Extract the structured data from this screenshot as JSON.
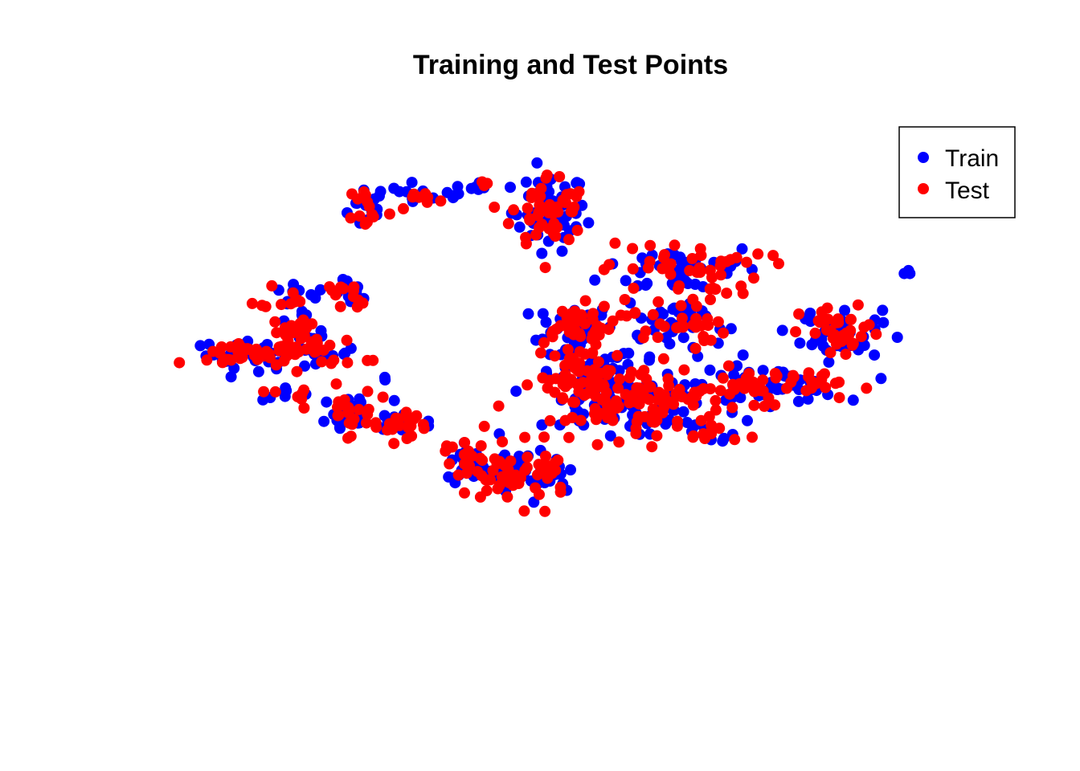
{
  "chart_data": {
    "type": "scatter",
    "title": "Training and Test Points",
    "xlabel": "",
    "ylabel": "",
    "axes_visible": false,
    "grid": false,
    "legend_position": "top-right",
    "xlim": [
      0,
      100
    ],
    "ylim": [
      0,
      100
    ],
    "series": [
      {
        "name": "Train",
        "color": "#0000ff",
        "clusters": [
          {
            "center": [
              23.5,
              84.8
            ],
            "spread": [
              1.3,
              2.3
            ],
            "count": 18
          },
          {
            "center": [
              29.8,
              87.9
            ],
            "spread": [
              1.8,
              0.8
            ],
            "count": 8
          },
          {
            "center": [
              36.6,
              87.9
            ],
            "spread": [
              1.8,
              1.0
            ],
            "count": 10
          },
          {
            "center": [
              46.7,
              83.8
            ],
            "spread": [
              2.4,
              3.8
            ],
            "count": 45
          },
          {
            "center": [
              14.1,
              67.5
            ],
            "spread": [
              2.2,
              1.3
            ],
            "count": 10
          },
          {
            "center": [
              21.7,
              67.8
            ],
            "spread": [
              1.2,
              1.3
            ],
            "count": 10
          },
          {
            "center": [
              49.8,
              61.8
            ],
            "spread": [
              2.5,
              2.0
            ],
            "count": 35
          },
          {
            "center": [
              63.9,
              72.7
            ],
            "spread": [
              5.2,
              2.6
            ],
            "count": 40
          },
          {
            "center": [
              62.9,
              62.3
            ],
            "spread": [
              3.2,
              3.2
            ],
            "count": 40
          },
          {
            "center": [
              84.2,
              60.1
            ],
            "spread": [
              2.6,
              2.6
            ],
            "count": 35
          },
          {
            "center": [
              80.5,
              63.2
            ],
            "spread": [
              0.6,
              0.5
            ],
            "count": 4
          },
          {
            "center": [
              92.9,
              71.9
            ],
            "spread": [
              0.3,
              0.3
            ],
            "count": 3
          },
          {
            "center": [
              11.6,
              56.1
            ],
            "spread": [
              5.5,
              1.3
            ],
            "count": 45
          },
          {
            "center": [
              14.6,
              60.2
            ],
            "spread": [
              1.6,
              1.8
            ],
            "count": 20
          },
          {
            "center": [
              5.1,
              54.4
            ],
            "spread": [
              0.5,
              0.4
            ],
            "count": 3
          },
          {
            "center": [
              25.7,
              51.1
            ],
            "spread": [
              0.3,
              0.3
            ],
            "count": 2
          },
          {
            "center": [
              13.6,
              48.5
            ],
            "spread": [
              1.8,
              0.7
            ],
            "count": 6
          },
          {
            "center": [
              20.7,
              44.6
            ],
            "spread": [
              1.8,
              2.6
            ],
            "count": 22
          },
          {
            "center": [
              28.1,
              42.8
            ],
            "spread": [
              2.8,
              1.3
            ],
            "count": 20
          },
          {
            "center": [
              51.5,
              51.6
            ],
            "spread": [
              3.4,
              3.0
            ],
            "count": 45
          },
          {
            "center": [
              53.8,
              45.5
            ],
            "spread": [
              3.6,
              3.2
            ],
            "count": 40
          },
          {
            "center": [
              59.7,
              47.2
            ],
            "spread": [
              2.0,
              2.6
            ],
            "count": 20
          },
          {
            "center": [
              65.0,
              46.3
            ],
            "spread": [
              4.0,
              2.8
            ],
            "count": 30
          },
          {
            "center": [
              74.8,
              50.0
            ],
            "spread": [
              4.6,
              1.7
            ],
            "count": 45
          },
          {
            "center": [
              67.9,
              40.3
            ],
            "spread": [
              1.8,
              0.5
            ],
            "count": 6
          },
          {
            "center": [
              35.9,
              35.3
            ],
            "spread": [
              2.2,
              2.6
            ],
            "count": 18
          },
          {
            "center": [
              42.2,
              32.0
            ],
            "spread": [
              3.6,
              2.6
            ],
            "count": 40
          },
          {
            "center": [
              47.1,
              33.6
            ],
            "spread": [
              1.4,
              1.5
            ],
            "count": 8
          }
        ]
      },
      {
        "name": "Test",
        "color": "#ff0000",
        "clusters": [
          {
            "center": [
              23.5,
              84.8
            ],
            "spread": [
              1.3,
              2.3
            ],
            "count": 14
          },
          {
            "center": [
              30.3,
              86.3
            ],
            "spread": [
              1.6,
              1.2
            ],
            "count": 8
          },
          {
            "center": [
              38.5,
              89.8
            ],
            "spread": [
              0.6,
              0.7
            ],
            "count": 3
          },
          {
            "center": [
              46.7,
              83.8
            ],
            "spread": [
              2.4,
              3.8
            ],
            "count": 50
          },
          {
            "center": [
              14.1,
              67.5
            ],
            "spread": [
              2.2,
              1.3
            ],
            "count": 12
          },
          {
            "center": [
              21.7,
              67.8
            ],
            "spread": [
              1.2,
              1.3
            ],
            "count": 10
          },
          {
            "center": [
              49.8,
              61.8
            ],
            "spread": [
              2.5,
              2.0
            ],
            "count": 40
          },
          {
            "center": [
              63.9,
              72.7
            ],
            "spread": [
              5.2,
              2.6
            ],
            "count": 45
          },
          {
            "center": [
              62.9,
              62.3
            ],
            "spread": [
              3.2,
              3.2
            ],
            "count": 35
          },
          {
            "center": [
              84.2,
              60.1
            ],
            "spread": [
              2.6,
              2.6
            ],
            "count": 35
          },
          {
            "center": [
              11.6,
              56.1
            ],
            "spread": [
              5.5,
              1.3
            ],
            "count": 50
          },
          {
            "center": [
              14.6,
              60.2
            ],
            "spread": [
              1.6,
              1.8
            ],
            "count": 22
          },
          {
            "center": [
              5.1,
              54.4
            ],
            "spread": [
              0.5,
              0.4
            ],
            "count": 3
          },
          {
            "center": [
              13.6,
              48.5
            ],
            "spread": [
              1.8,
              0.7
            ],
            "count": 6
          },
          {
            "center": [
              20.7,
              44.6
            ],
            "spread": [
              1.8,
              2.6
            ],
            "count": 22
          },
          {
            "center": [
              28.1,
              42.8
            ],
            "spread": [
              2.8,
              1.3
            ],
            "count": 22
          },
          {
            "center": [
              51.5,
              51.6
            ],
            "spread": [
              3.4,
              3.0
            ],
            "count": 50
          },
          {
            "center": [
              53.8,
              45.5
            ],
            "spread": [
              3.6,
              3.2
            ],
            "count": 45
          },
          {
            "center": [
              59.7,
              47.2
            ],
            "spread": [
              2.0,
              2.6
            ],
            "count": 20
          },
          {
            "center": [
              65.0,
              46.3
            ],
            "spread": [
              4.0,
              2.8
            ],
            "count": 30
          },
          {
            "center": [
              74.8,
              50.0
            ],
            "spread": [
              4.6,
              1.7
            ],
            "count": 50
          },
          {
            "center": [
              67.9,
              40.3
            ],
            "spread": [
              1.8,
              0.5
            ],
            "count": 8
          },
          {
            "center": [
              35.9,
              35.3
            ],
            "spread": [
              2.2,
              2.6
            ],
            "count": 20
          },
          {
            "center": [
              42.2,
              32.0
            ],
            "spread": [
              3.6,
              2.6
            ],
            "count": 40
          },
          {
            "center": [
              47.1,
              33.6
            ],
            "spread": [
              1.4,
              1.5
            ],
            "count": 6
          }
        ]
      }
    ]
  }
}
